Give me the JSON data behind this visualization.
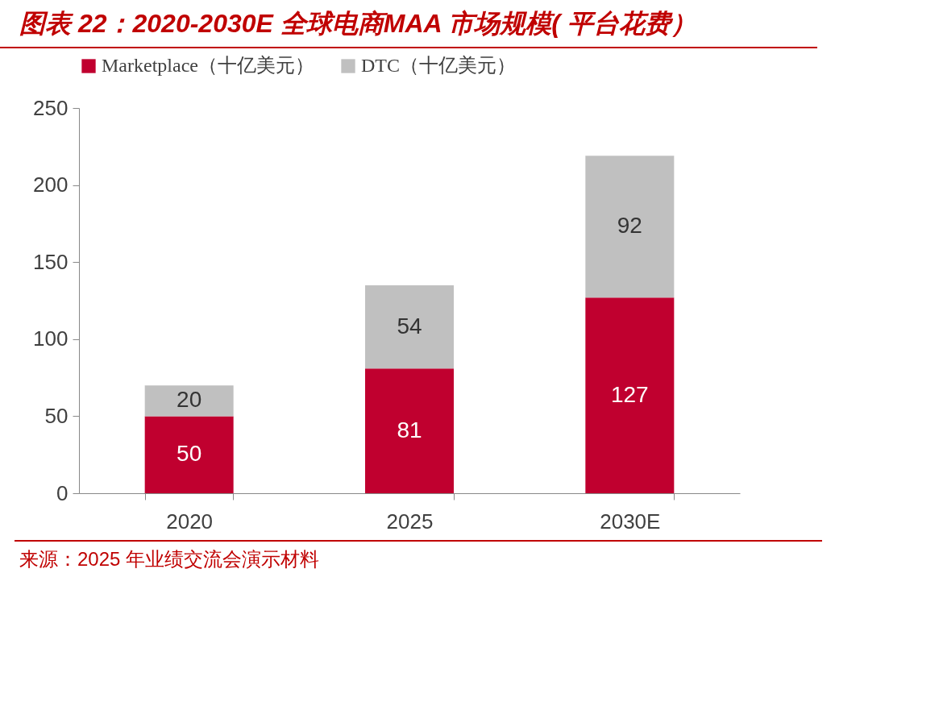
{
  "chart_data": {
    "type": "bar",
    "title": "图表 22：2020-2030E 全球电商MAA 市场规模( 平台花费）",
    "categories": [
      "2020",
      "2025",
      "2030E"
    ],
    "stacked": true,
    "series": [
      {
        "name": "Marketplace（十亿美元）",
        "color": "#c0002f",
        "values": [
          50,
          81,
          127
        ]
      },
      {
        "name": "DTC（十亿美元）",
        "color": "#c0c0c0",
        "values": [
          20,
          54,
          92
        ]
      }
    ],
    "ylim": [
      0,
      250
    ],
    "yticks": [
      0,
      50,
      100,
      150,
      200,
      250
    ],
    "grid": false,
    "legend": "top",
    "data_labels": true,
    "annotations": [
      "来源：2025 年业绩交流会演示材料"
    ]
  }
}
